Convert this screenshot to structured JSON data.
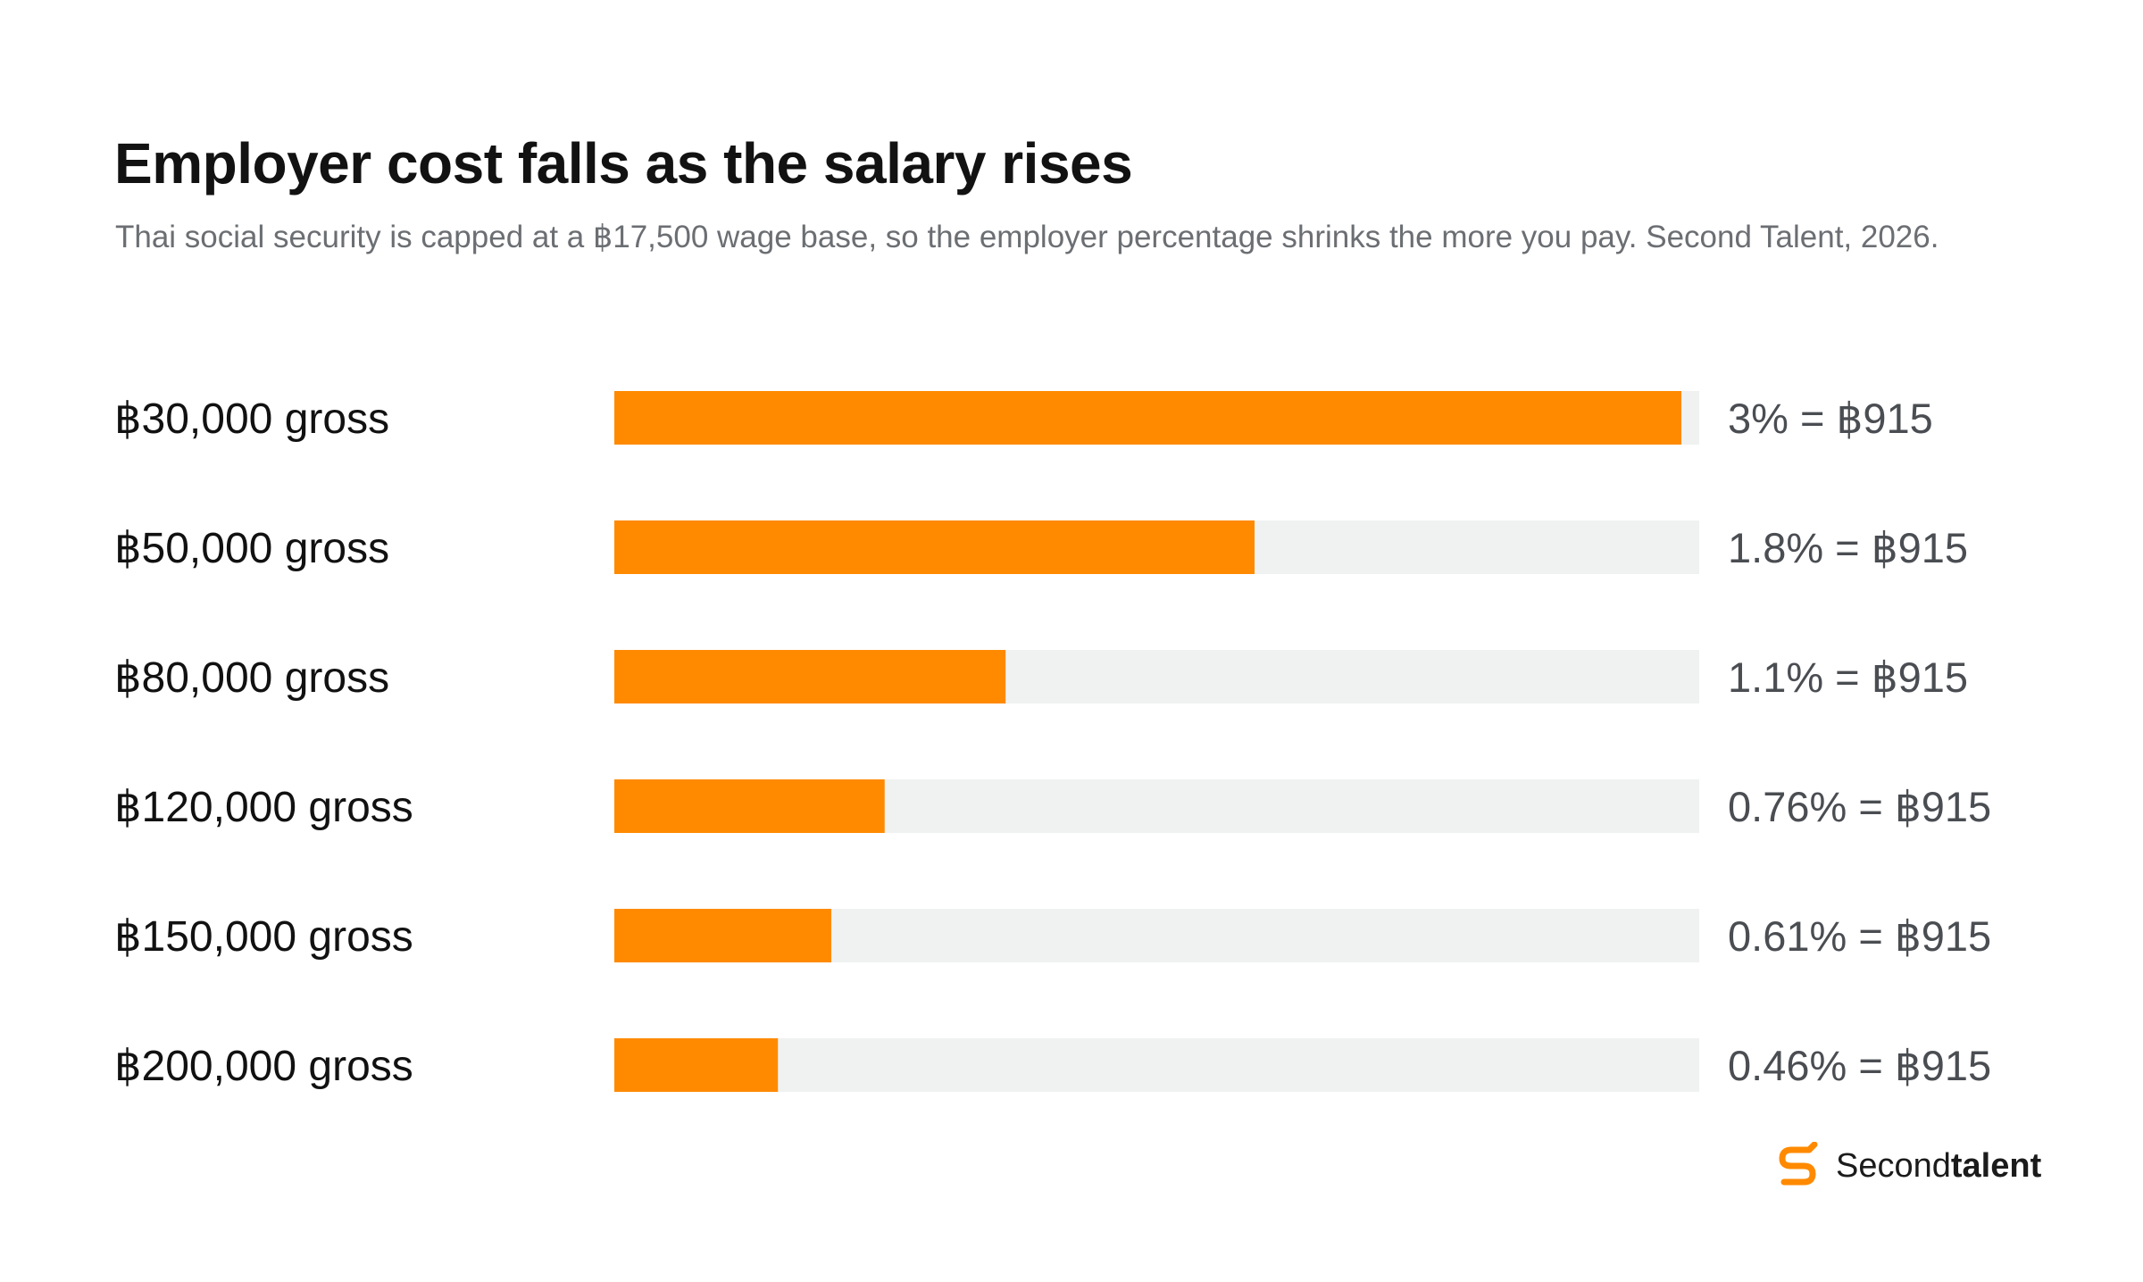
{
  "brand": {
    "name_regular": "Second",
    "name_bold": "talent",
    "icon": "secondtalent-logo-icon",
    "accent": "#ff8a00"
  },
  "colors": {
    "bar": "#ff8a00",
    "track": "#f0f1f1",
    "title": "#121212",
    "subtitle": "#6b6e72"
  },
  "chart_data": {
    "type": "bar",
    "orientation": "horizontal",
    "title": "Employer cost falls as the salary rises",
    "subtitle": "Thai social security is capped at a ฿17,500 wage base, so the employer percentage shrinks the more you pay. Second Talent, 2026.",
    "xlabel": "",
    "ylabel": "",
    "grid": false,
    "legend": "none",
    "xlim": [
      0,
      3
    ],
    "categories": [
      "฿30,000 gross",
      "฿50,000 gross",
      "฿80,000 gross",
      "฿120,000 gross",
      "฿150,000 gross",
      "฿200,000 gross"
    ],
    "values": [
      3,
      1.8,
      1.1,
      0.76,
      0.61,
      0.46
    ],
    "value_labels": [
      "3% = ฿915",
      "1.8% = ฿915",
      "1.1% = ฿915",
      "0.76% = ฿915",
      "0.61% = ฿915",
      "0.46% = ฿915"
    ]
  }
}
